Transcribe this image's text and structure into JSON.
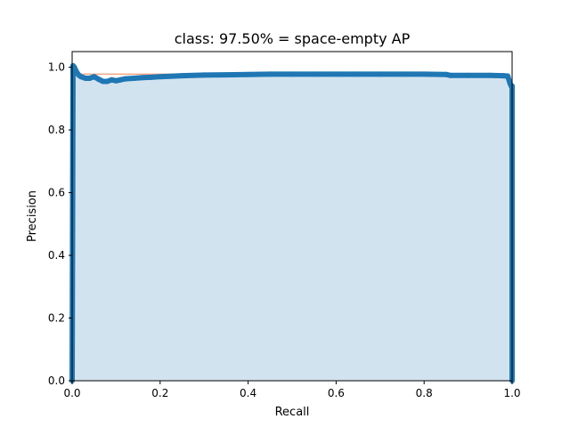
{
  "chart_data": {
    "type": "area",
    "title": "class: 97.50% = space-empty AP",
    "xlabel": "Recall",
    "ylabel": "Precision",
    "xlim": [
      0.0,
      1.0
    ],
    "ylim": [
      0.0,
      1.05
    ],
    "x_ticks": [
      "0.0",
      "0.2",
      "0.4",
      "0.6",
      "0.8",
      "1.0"
    ],
    "y_ticks": [
      "0.0",
      "0.2",
      "0.4",
      "0.6",
      "0.8",
      "1.0"
    ],
    "grid": false,
    "colors": {
      "fill": "#d2e3f0",
      "line": "#1f77b4",
      "interp": "#f4a582"
    },
    "series": [
      {
        "x": [
          0.0,
          0.002,
          0.005,
          0.01,
          0.015,
          0.02,
          0.03,
          0.04,
          0.05,
          0.06,
          0.07,
          0.08,
          0.09,
          0.1,
          0.11,
          0.12,
          0.14,
          0.16,
          0.18,
          0.2,
          0.25,
          0.3,
          0.35,
          0.4,
          0.45,
          0.5,
          0.55,
          0.6,
          0.65,
          0.7,
          0.75,
          0.8,
          0.85,
          0.86,
          0.9,
          0.95,
          0.98,
          0.99,
          0.995,
          0.998,
          1.0,
          1.0
        ],
        "y": [
          0.0,
          1.005,
          1.0,
          0.985,
          0.975,
          0.97,
          0.965,
          0.965,
          0.97,
          0.962,
          0.955,
          0.955,
          0.96,
          0.957,
          0.96,
          0.963,
          0.965,
          0.967,
          0.968,
          0.97,
          0.973,
          0.975,
          0.976,
          0.977,
          0.978,
          0.978,
          0.978,
          0.978,
          0.978,
          0.978,
          0.978,
          0.978,
          0.977,
          0.974,
          0.974,
          0.974,
          0.973,
          0.972,
          0.95,
          0.94,
          0.94,
          0.0
        ]
      }
    ]
  }
}
